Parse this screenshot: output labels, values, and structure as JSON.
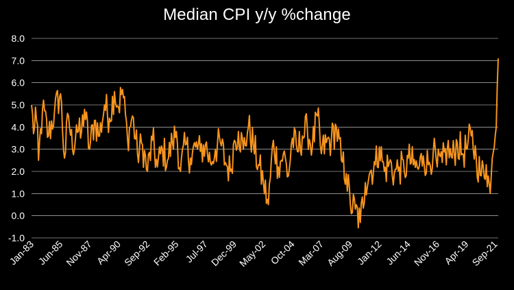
{
  "chart_data": {
    "type": "line",
    "title": "Median CPI y/y %change",
    "xlabel": "",
    "ylabel": "",
    "ylim": [
      -1.0,
      8.0
    ],
    "yticks": [
      "8.0",
      "7.0",
      "6.0",
      "5.0",
      "4.0",
      "3.0",
      "2.0",
      "1.0",
      "0.0",
      "-1.0"
    ],
    "xticks": [
      "Jan-83",
      "Jun-85",
      "Nov-87",
      "Apr-90",
      "Sep-92",
      "Feb-95",
      "Jul-97",
      "Dec-99",
      "May-02",
      "Oct-04",
      "Mar-07",
      "Aug-09",
      "Jan-12",
      "Jun-14",
      "Nov-16",
      "Apr-19",
      "Sep-21"
    ],
    "grid": true,
    "legend": "none",
    "line_color": "#F7941D",
    "series": [
      {
        "x": [
          "Jan-83",
          "Mar-83",
          "May-83",
          "Aug-83",
          "Dec-83",
          "Jun-84",
          "Dec-84",
          "Jun-85",
          "Oct-85",
          "Feb-86",
          "Jun-86",
          "Oct-86",
          "Feb-87",
          "Jun-87",
          "Nov-87",
          "Apr-88",
          "Sep-88",
          "Feb-89",
          "Jul-89",
          "Dec-89",
          "Apr-90",
          "Aug-90",
          "Jan-91",
          "Jun-91",
          "Nov-91",
          "Apr-92",
          "Sep-92",
          "Feb-93",
          "Jul-93",
          "Dec-93",
          "May-94",
          "Oct-94",
          "Feb-95",
          "Jun-95",
          "Nov-95",
          "Apr-96",
          "Sep-96",
          "Feb-97",
          "Jul-97",
          "Dec-97",
          "May-98",
          "Oct-98",
          "Mar-99",
          "Aug-99",
          "Dec-99",
          "Apr-00",
          "Sep-00",
          "Feb-01",
          "Jul-01",
          "Dec-01",
          "May-02",
          "Oct-02",
          "Mar-03",
          "Aug-03",
          "Jan-04",
          "Jun-04",
          "Oct-04",
          "Mar-05",
          "Aug-05",
          "Jan-06",
          "Jun-06",
          "Nov-06",
          "Mar-07",
          "Aug-07",
          "Jan-08",
          "Jun-08",
          "Nov-08",
          "Apr-09",
          "Aug-09",
          "Jan-10",
          "Jun-10",
          "Nov-10",
          "Apr-11",
          "Sep-11",
          "Jan-12",
          "Jun-12",
          "Nov-12",
          "Apr-13",
          "Sep-13",
          "Feb-14",
          "Jun-14",
          "Nov-14",
          "Apr-15",
          "Sep-15",
          "Feb-16",
          "Jul-16",
          "Nov-16",
          "Apr-17",
          "Sep-17",
          "Feb-18",
          "Jul-18",
          "Dec-18",
          "Apr-19",
          "Sep-19",
          "Feb-20",
          "Jul-20",
          "Dec-20",
          "Apr-21",
          "Jun-21",
          "Aug-21",
          "Sep-21",
          "Oct-21",
          "Nov-21",
          "Dec-21"
        ],
        "values": [
          5.0,
          3.7,
          4.9,
          2.5,
          4.8,
          3.6,
          4.7,
          5.5,
          2.6,
          4.5,
          3.0,
          4.1,
          3.5,
          4.8,
          3.0,
          4.3,
          3.6,
          5.0,
          4.4,
          5.6,
          4.9,
          5.7,
          3.5,
          4.5,
          2.8,
          3.2,
          2.0,
          3.4,
          2.2,
          3.0,
          2.5,
          3.3,
          3.8,
          2.0,
          3.2,
          2.6,
          3.1,
          2.9,
          3.2,
          2.4,
          3.0,
          3.3,
          2.4,
          2.0,
          3.4,
          3.8,
          3.0,
          4.0,
          3.2,
          2.3,
          1.5,
          0.5,
          3.4,
          2.2,
          2.8,
          1.8,
          3.5,
          2.9,
          3.6,
          3.9,
          3.1,
          4.5,
          2.8,
          3.3,
          3.4,
          4.0,
          2.5,
          1.9,
          0.5,
          0.3,
          -0.3,
          1.5,
          2.0,
          2.3,
          3.1,
          2.0,
          2.4,
          1.9,
          2.2,
          2.0,
          2.6,
          2.3,
          2.1,
          2.7,
          2.3,
          2.9,
          2.2,
          2.4,
          3.0,
          2.6,
          3.3,
          2.8,
          3.0,
          3.6,
          2.6,
          1.8,
          2.3,
          1.0,
          2.6,
          3.1,
          3.6,
          4.0,
          5.8,
          7.1
        ]
      }
    ]
  }
}
